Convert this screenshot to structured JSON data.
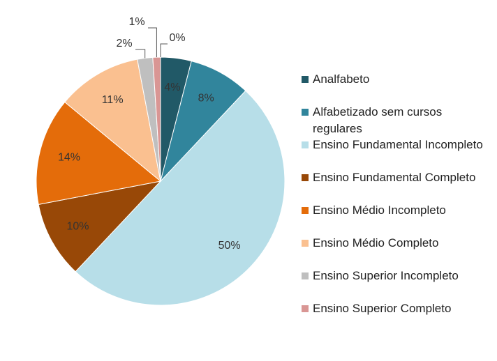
{
  "chart_data": {
    "type": "pie",
    "categories": [
      "Analfabeto",
      "Alfabetizado sem cursos regulares",
      "Ensino Fundamental Incompleto",
      "Ensino Fundamental Completo",
      "Ensino Médio Incompleto",
      "Ensino Médio Completo",
      "Ensino Superior Incompleto",
      "Ensino Superior Completo",
      null
    ],
    "values": [
      4,
      8,
      50,
      10,
      14,
      11,
      2,
      1,
      0
    ],
    "value_labels": [
      "4%",
      "8%",
      "50%",
      "10%",
      "14%",
      "11%",
      "2%",
      "1%",
      "0%"
    ],
    "colors": [
      "#215967",
      "#31859c",
      "#b7dee8",
      "#984807",
      "#e46c0a",
      "#fac090",
      "#bfbfbf",
      "#d99694",
      "#c3d69b"
    ],
    "legend": "right"
  }
}
